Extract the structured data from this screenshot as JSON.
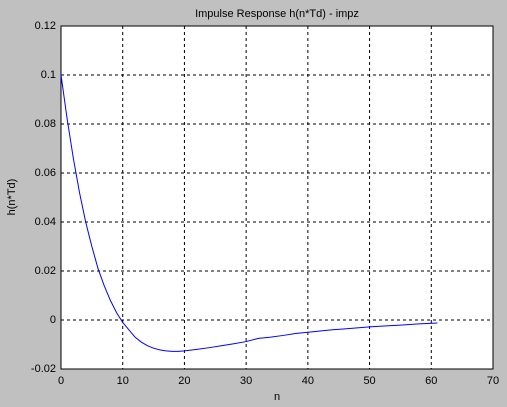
{
  "chart_data": {
    "type": "line",
    "title": "Impulse Response h(n*Td) - impz",
    "x_label": "n",
    "y_label": "h(n*Td)",
    "x": [
      0,
      1,
      2,
      3,
      4,
      5,
      6,
      7,
      8,
      9,
      10,
      11,
      12,
      13,
      14,
      15,
      16,
      17,
      18,
      19,
      20,
      22,
      24,
      26,
      28,
      30,
      32,
      34,
      36,
      38,
      40,
      42,
      44,
      46,
      48,
      50,
      52,
      55,
      58,
      61
    ],
    "series": [
      {
        "color": "#0000ff",
        "values": [
          0.1,
          0.082,
          0.066,
          0.052,
          0.04,
          0.03,
          0.021,
          0.014,
          0.008,
          0.003,
          -0.001,
          -0.004,
          -0.007,
          -0.009,
          -0.0105,
          -0.0115,
          -0.0122,
          -0.0126,
          -0.0128,
          -0.0128,
          -0.0126,
          -0.012,
          -0.0113,
          -0.0105,
          -0.0097,
          -0.0088,
          -0.0075,
          -0.007,
          -0.0063,
          -0.0055,
          -0.005,
          -0.0045,
          -0.004,
          -0.0036,
          -0.0032,
          -0.0028,
          -0.0025,
          -0.0021,
          -0.0016,
          -0.0012
        ]
      }
    ],
    "xlim": [
      0,
      70
    ],
    "xticks": [
      0,
      10,
      20,
      30,
      40,
      50,
      60,
      70
    ],
    "ylim": [
      -0.02,
      0.12
    ],
    "yticks": [
      -0.02,
      0,
      0.02,
      0.04,
      0.06,
      0.08,
      0.1,
      0.12
    ],
    "grid": true
  }
}
